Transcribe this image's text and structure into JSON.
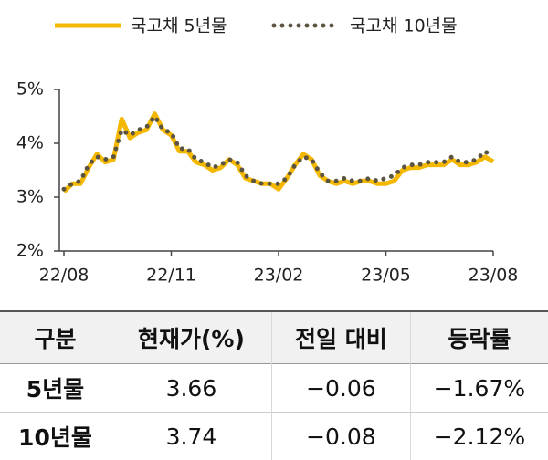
{
  "chart_data": {
    "type": "line",
    "categories": [
      "22/08",
      null,
      null,
      null,
      null,
      null,
      null,
      null,
      null,
      null,
      null,
      null,
      null,
      "22/11",
      null,
      null,
      null,
      null,
      null,
      null,
      null,
      null,
      null,
      null,
      null,
      null,
      "23/02",
      null,
      null,
      null,
      null,
      null,
      null,
      null,
      null,
      null,
      null,
      null,
      null,
      "23/05",
      null,
      null,
      null,
      null,
      null,
      null,
      null,
      null,
      null,
      null,
      null,
      null,
      "23/08"
    ],
    "series": [
      {
        "name": "국고채 5년물",
        "color": "#f5b800",
        "style": "solid",
        "values": [
          3.1,
          3.25,
          3.25,
          3.55,
          3.8,
          3.65,
          3.7,
          4.45,
          4.1,
          4.2,
          4.25,
          4.55,
          4.25,
          4.15,
          3.85,
          3.85,
          3.65,
          3.6,
          3.5,
          3.55,
          3.7,
          3.6,
          3.35,
          3.3,
          3.25,
          3.25,
          3.15,
          3.35,
          3.6,
          3.8,
          3.7,
          3.4,
          3.3,
          3.25,
          3.3,
          3.25,
          3.3,
          3.3,
          3.25,
          3.25,
          3.3,
          3.5,
          3.55,
          3.55,
          3.6,
          3.6,
          3.6,
          3.7,
          3.6,
          3.6,
          3.65,
          3.75,
          3.66
        ]
      },
      {
        "name": "국고채 10년물",
        "color": "#5b5442",
        "style": "dotted",
        "values": [
          3.15,
          3.25,
          3.3,
          3.6,
          3.75,
          3.7,
          3.75,
          4.25,
          4.15,
          4.25,
          4.3,
          4.5,
          4.25,
          4.2,
          3.9,
          3.9,
          3.7,
          3.65,
          3.55,
          3.6,
          3.7,
          3.65,
          3.4,
          3.3,
          3.25,
          3.25,
          3.25,
          3.35,
          3.6,
          3.75,
          3.7,
          3.45,
          3.3,
          3.3,
          3.35,
          3.3,
          3.3,
          3.35,
          3.3,
          3.35,
          3.4,
          3.55,
          3.6,
          3.6,
          3.65,
          3.65,
          3.65,
          3.75,
          3.65,
          3.65,
          3.7,
          3.85,
          3.74
        ]
      }
    ],
    "ylim": [
      2,
      5
    ],
    "yticks": [
      {
        "value": 2,
        "label": "2%"
      },
      {
        "value": 3,
        "label": "3%"
      },
      {
        "value": 4,
        "label": "4%"
      },
      {
        "value": 5,
        "label": "5%"
      }
    ],
    "legend": "top"
  },
  "table": {
    "header": [
      "구분",
      "현재가(%)",
      "전일 대비",
      "등락률"
    ],
    "rows": [
      [
        "5년물",
        "3.66",
        "−0.06",
        "−1.67%"
      ],
      [
        "10년물",
        "3.74",
        "−0.08",
        "−2.12%"
      ]
    ]
  }
}
